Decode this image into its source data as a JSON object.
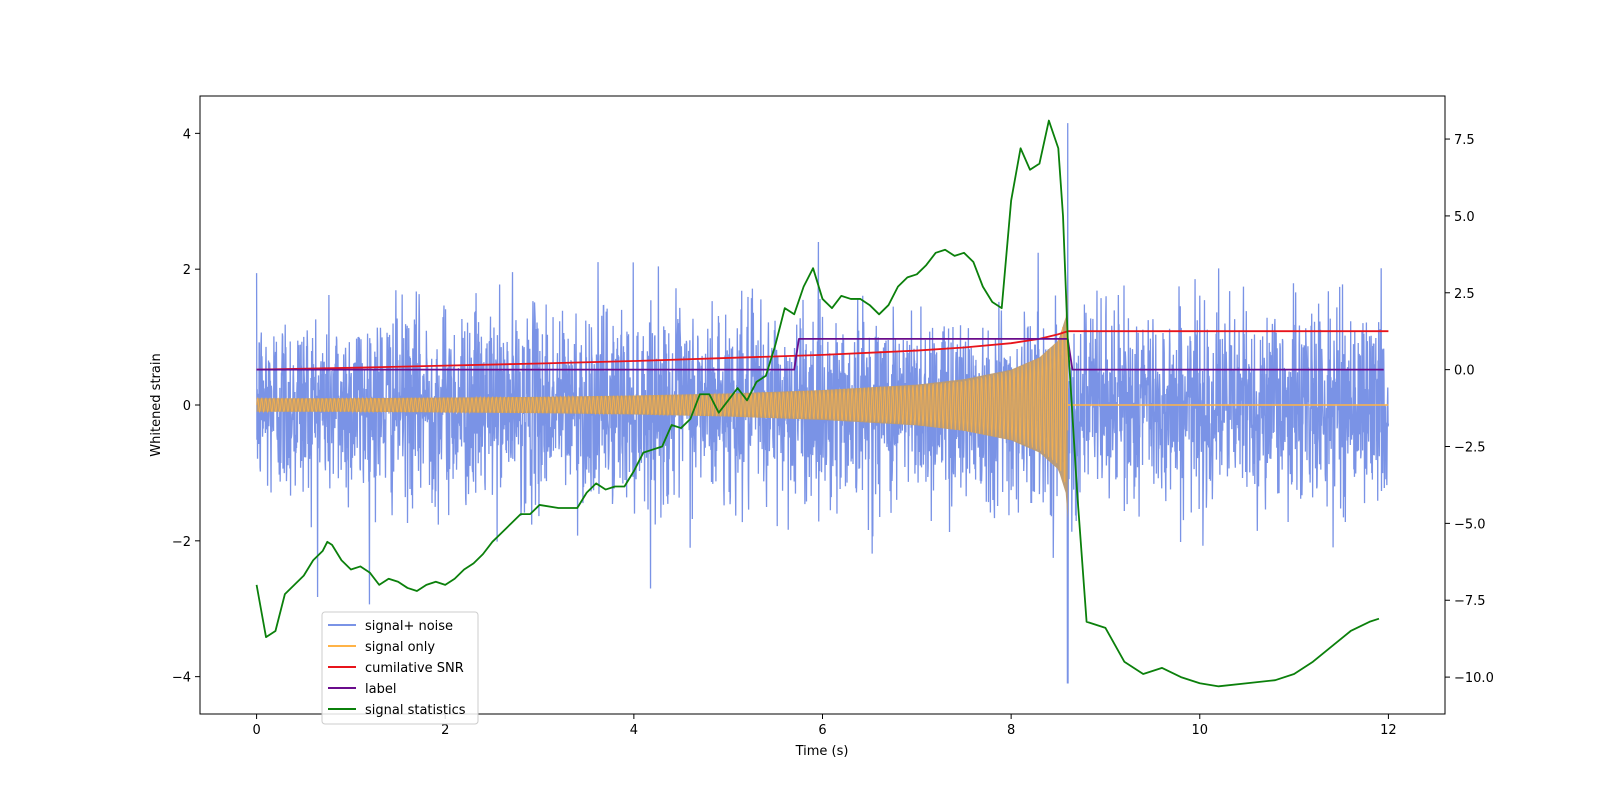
{
  "chart_data": {
    "type": "line",
    "title": "",
    "xlabel": "Time (s)",
    "ylabel": "Whitened strain",
    "y2label": "",
    "xlim": [
      -0.6,
      12.6
    ],
    "ylim": [
      -4.55,
      4.55
    ],
    "y2lim": [
      -11.2,
      8.9
    ],
    "xticks": [
      0,
      2,
      4,
      6,
      8,
      10,
      12
    ],
    "yticks": [
      -4,
      -2,
      0,
      2,
      4
    ],
    "y2ticks": [
      -10.0,
      -7.5,
      -5.0,
      -2.5,
      0.0,
      2.5,
      5.0,
      7.5
    ],
    "legend": {
      "placement": "lower-left",
      "entries": [
        "signal+ noise",
        "signal only",
        "cumilative SNR",
        "label",
        "signal statistics"
      ]
    },
    "colors": {
      "noise": "#7a93e6",
      "signal": "#ffb347",
      "overlap": "#bb9a72",
      "snr": "#e8141b",
      "label": "#6a0c8c",
      "stats": "#0b800b"
    },
    "series": [
      {
        "name": "signal+ noise",
        "axis": "left",
        "description": "whitened strain data with noise, random fluctuations roughly within ±2, spikes to ±4",
        "x_range": [
          0,
          12
        ],
        "noise_amplitude_std": 0.7,
        "peak": {
          "x": 8.6,
          "max": 4.15,
          "min": -4.1
        }
      },
      {
        "name": "signal only",
        "axis": "left",
        "description": "chirp signal amplitude envelope",
        "envelope": {
          "x": [
            0,
            1,
            2,
            3,
            4,
            5,
            6,
            7,
            7.5,
            8,
            8.3,
            8.5,
            8.58,
            8.6
          ],
          "amplitude": [
            0.1,
            0.1,
            0.11,
            0.12,
            0.14,
            0.17,
            0.22,
            0.3,
            0.38,
            0.52,
            0.7,
            0.95,
            1.3,
            1.7
          ]
        },
        "after_merger": 0
      },
      {
        "name": "cumilative SNR",
        "axis": "right",
        "x": [
          0,
          1,
          2,
          3,
          4,
          5,
          6,
          7,
          7.5,
          8,
          8.3,
          8.5,
          8.6,
          9,
          10,
          11,
          12
        ],
        "y": [
          0.0,
          0.06,
          0.13,
          0.2,
          0.28,
          0.38,
          0.48,
          0.62,
          0.72,
          0.86,
          1.0,
          1.15,
          1.25,
          1.25,
          1.25,
          1.25,
          1.25
        ]
      },
      {
        "name": "label",
        "axis": "right",
        "x": [
          0,
          5.7,
          5.75,
          8.6,
          8.65,
          11.95
        ],
        "y": [
          0.0,
          0.0,
          1.0,
          1.0,
          0.0,
          0.0
        ]
      },
      {
        "name": "signal statistics",
        "axis": "right",
        "x": [
          0,
          0.1,
          0.2,
          0.3,
          0.4,
          0.5,
          0.6,
          0.7,
          0.75,
          0.8,
          0.9,
          1.0,
          1.1,
          1.2,
          1.3,
          1.4,
          1.5,
          1.6,
          1.7,
          1.8,
          1.9,
          2.0,
          2.1,
          2.2,
          2.3,
          2.4,
          2.5,
          2.6,
          2.7,
          2.8,
          2.9,
          3.0,
          3.2,
          3.4,
          3.5,
          3.6,
          3.7,
          3.8,
          3.9,
          4.0,
          4.1,
          4.2,
          4.3,
          4.4,
          4.5,
          4.6,
          4.7,
          4.8,
          4.9,
          5.0,
          5.1,
          5.2,
          5.3,
          5.4,
          5.5,
          5.6,
          5.7,
          5.8,
          5.9,
          6.0,
          6.1,
          6.2,
          6.3,
          6.4,
          6.5,
          6.6,
          6.7,
          6.8,
          6.9,
          7.0,
          7.1,
          7.2,
          7.3,
          7.4,
          7.5,
          7.6,
          7.7,
          7.8,
          7.9,
          8.0,
          8.1,
          8.2,
          8.3,
          8.4,
          8.5,
          8.55,
          8.6,
          8.7,
          8.8,
          9.0,
          9.2,
          9.4,
          9.6,
          9.8,
          10.0,
          10.2,
          10.5,
          10.8,
          11.0,
          11.2,
          11.4,
          11.6,
          11.8,
          11.9
        ],
        "y": [
          -7.0,
          -8.7,
          -8.5,
          -7.3,
          -7.0,
          -6.7,
          -6.2,
          -5.9,
          -5.6,
          -5.7,
          -6.2,
          -6.5,
          -6.4,
          -6.6,
          -7.0,
          -6.8,
          -6.9,
          -7.1,
          -7.2,
          -7.0,
          -6.9,
          -7.0,
          -6.8,
          -6.5,
          -6.3,
          -6.0,
          -5.6,
          -5.3,
          -5.0,
          -4.7,
          -4.7,
          -4.4,
          -4.5,
          -4.5,
          -4.0,
          -3.7,
          -3.9,
          -3.8,
          -3.8,
          -3.3,
          -2.7,
          -2.6,
          -2.5,
          -1.8,
          -1.9,
          -1.6,
          -0.8,
          -0.8,
          -1.4,
          -1.0,
          -0.6,
          -1.0,
          -0.4,
          -0.2,
          0.8,
          2.0,
          1.8,
          2.7,
          3.3,
          2.3,
          2.0,
          2.4,
          2.3,
          2.3,
          2.1,
          1.8,
          2.1,
          2.7,
          3.0,
          3.1,
          3.4,
          3.8,
          3.9,
          3.7,
          3.8,
          3.5,
          2.7,
          2.2,
          2.0,
          5.5,
          7.2,
          6.5,
          6.7,
          8.1,
          7.2,
          5.0,
          1.0,
          -4.0,
          -8.2,
          -8.4,
          -9.5,
          -9.9,
          -9.7,
          -10.0,
          -10.2,
          -10.3,
          -10.2,
          -10.1,
          -9.9,
          -9.5,
          -9.0,
          -8.5,
          -8.2,
          -8.1
        ]
      }
    ]
  }
}
